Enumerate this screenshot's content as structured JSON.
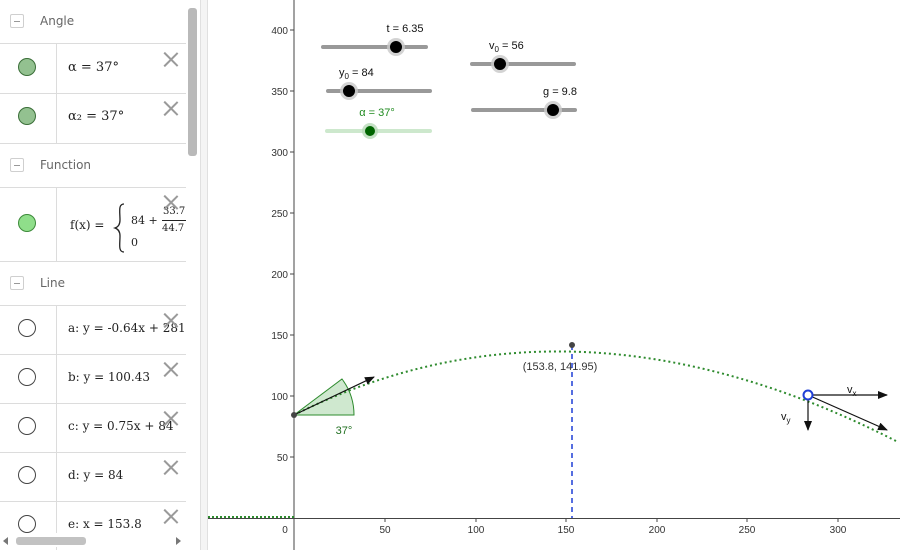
{
  "algebra": {
    "categories": {
      "angle": "Angle",
      "function": "Function",
      "line": "Line"
    },
    "angle_items": [
      {
        "expr": "α = 37°"
      },
      {
        "expr": "α₂ = 37°"
      }
    ],
    "function_item": {
      "name": "f(x) =",
      "piece1_const": "84 +",
      "piece1_num": "33.7",
      "piece1_den": "44.7",
      "piece2": "0"
    },
    "line_items": [
      {
        "expr": "a: y = -0.64x + 281"
      },
      {
        "expr": "b: y = 100.43"
      },
      {
        "expr": "c: y = 0.75x + 84"
      },
      {
        "expr": "d: y = 84"
      },
      {
        "expr": "e: x = 153.8"
      }
    ]
  },
  "graphics": {
    "x_ticks": [
      "0",
      "50",
      "100",
      "150",
      "200",
      "250",
      "300"
    ],
    "y_ticks": [
      "50",
      "100",
      "150",
      "200",
      "250",
      "300",
      "350",
      "400"
    ],
    "sliders": [
      {
        "id": "t",
        "label": "t = 6.35",
        "value": 6.35
      },
      {
        "id": "v0",
        "label_main": "v",
        "label_sub": "0",
        "label_rest": " = 56",
        "value": 56
      },
      {
        "id": "y0",
        "label_main": "y",
        "label_sub": "0",
        "label_rest": " = 84",
        "value": 84
      },
      {
        "id": "g",
        "label": "g = 9.8",
        "value": 9.8
      },
      {
        "id": "alpha",
        "label": "α = 37°",
        "value": 37
      }
    ],
    "vertex_label": "(153.8, 141.95)",
    "angle_label": "37°",
    "vx_label": "v",
    "vx_sub": "x",
    "vy_label": "v",
    "vy_sub": "y",
    "colors": {
      "trajectory": "#2e8b2e",
      "vertical_line": "#1f3fd6",
      "angle_fill": "#cfe8cf",
      "slider_active": "#006400"
    }
  }
}
